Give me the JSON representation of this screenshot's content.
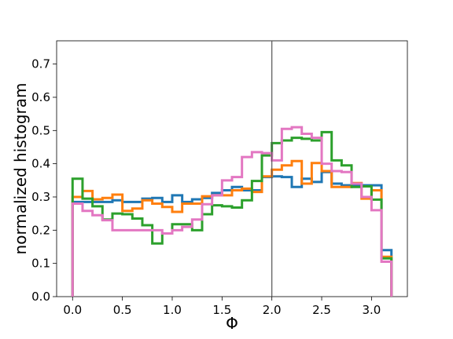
{
  "chart_data": {
    "type": "line",
    "drawstyle": "step-histogram",
    "xlabel": "Φ",
    "ylabel": "normalized histogram",
    "xlim": [
      -0.16,
      3.36
    ],
    "ylim": [
      0.0,
      0.77
    ],
    "xticks": [
      0.0,
      0.5,
      1.0,
      1.5,
      2.0,
      2.5,
      3.0
    ],
    "xtick_labels": [
      "0.0",
      "0.5",
      "1.0",
      "1.5",
      "2.0",
      "2.5",
      "3.0"
    ],
    "yticks": [
      0.0,
      0.1,
      0.2,
      0.3,
      0.4,
      0.5,
      0.6,
      0.7
    ],
    "ytick_labels": [
      "0.0",
      "0.1",
      "0.2",
      "0.3",
      "0.4",
      "0.5",
      "0.6",
      "0.7"
    ],
    "grid": false,
    "vline_x": 2.0,
    "bin_edges": [
      0.0,
      0.1,
      0.2,
      0.3,
      0.4,
      0.5,
      0.6,
      0.7,
      0.8,
      0.9,
      1.0,
      1.1,
      1.2,
      1.3,
      1.4,
      1.5,
      1.6,
      1.7,
      1.8,
      1.9,
      2.0,
      2.1,
      2.2,
      2.3,
      2.4,
      2.5,
      2.6,
      2.7,
      2.8,
      2.9,
      3.0,
      3.1,
      3.2
    ],
    "series": [
      {
        "color": "#1f77b4",
        "values": [
          0.285,
          0.285,
          0.285,
          0.285,
          0.29,
          0.285,
          0.285,
          0.295,
          0.297,
          0.285,
          0.305,
          0.285,
          0.293,
          0.297,
          0.312,
          0.32,
          0.33,
          0.32,
          0.32,
          0.36,
          0.362,
          0.36,
          0.33,
          0.355,
          0.345,
          0.375,
          0.34,
          0.335,
          0.335,
          0.335,
          0.335,
          0.14
        ]
      },
      {
        "color": "#ff7f0e",
        "values": [
          0.3,
          0.318,
          0.293,
          0.297,
          0.307,
          0.258,
          0.265,
          0.29,
          0.28,
          0.27,
          0.255,
          0.28,
          0.28,
          0.302,
          0.305,
          0.305,
          0.32,
          0.325,
          0.315,
          0.362,
          0.382,
          0.395,
          0.408,
          0.34,
          0.402,
          0.378,
          0.33,
          0.33,
          0.342,
          0.295,
          0.32,
          0.12
        ]
      },
      {
        "color": "#2ca02c",
        "values": [
          0.355,
          0.295,
          0.272,
          0.232,
          0.25,
          0.248,
          0.235,
          0.215,
          0.16,
          0.19,
          0.218,
          0.218,
          0.2,
          0.248,
          0.275,
          0.272,
          0.268,
          0.29,
          0.348,
          0.425,
          0.462,
          0.47,
          0.478,
          0.475,
          0.47,
          0.495,
          0.41,
          0.395,
          0.33,
          0.332,
          0.292,
          0.115
        ]
      },
      {
        "color": "#e377c2",
        "values": [
          0.28,
          0.258,
          0.245,
          0.23,
          0.2,
          0.2,
          0.2,
          0.2,
          0.2,
          0.19,
          0.2,
          0.21,
          0.232,
          0.278,
          0.305,
          0.35,
          0.36,
          0.42,
          0.435,
          0.432,
          0.41,
          0.505,
          0.51,
          0.49,
          0.478,
          0.4,
          0.378,
          0.375,
          0.34,
          0.3,
          0.26,
          0.105
        ]
      }
    ]
  }
}
